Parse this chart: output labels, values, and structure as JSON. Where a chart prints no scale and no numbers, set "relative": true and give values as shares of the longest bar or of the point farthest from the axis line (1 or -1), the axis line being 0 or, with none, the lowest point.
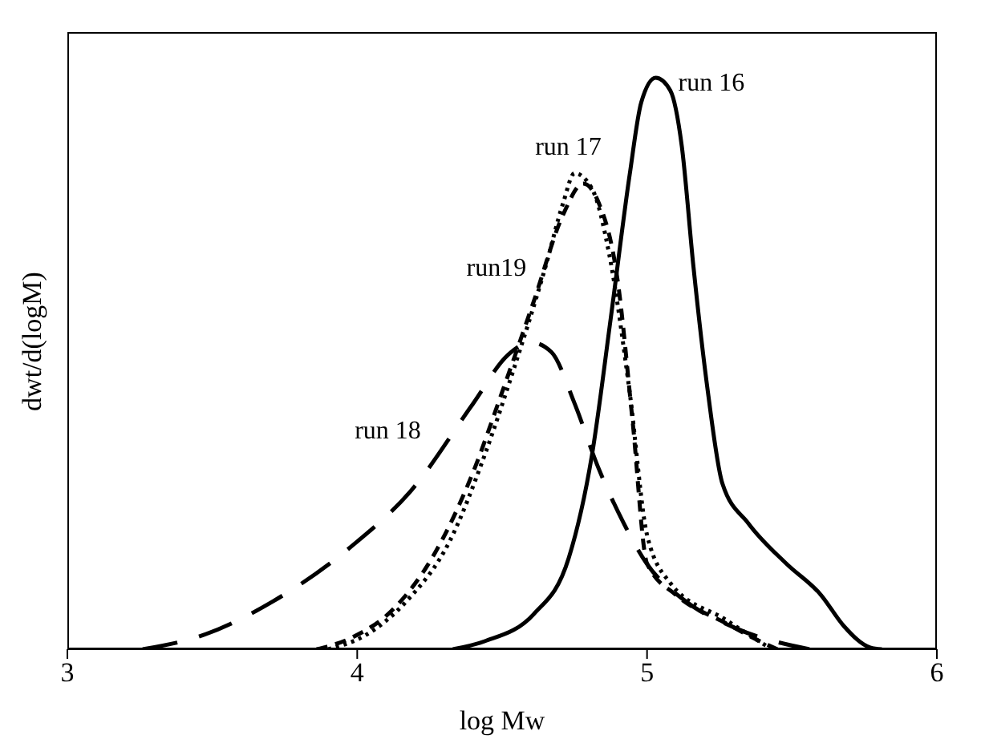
{
  "chart_data": {
    "type": "line",
    "xlabel": "log Mw",
    "ylabel": "dwt/d(logM)",
    "relative": true,
    "xlim": [
      3,
      6
    ],
    "xticks": [
      3,
      4,
      5,
      6
    ],
    "grid": false,
    "legend": false,
    "marker": "none",
    "series": [
      {
        "name": "run 16",
        "color": "#000000",
        "line_style": "solid",
        "x": [
          4.33,
          4.44,
          4.61,
          4.73,
          4.81,
          4.875,
          4.94,
          4.98,
          5.03,
          5.08,
          5.12,
          5.16,
          5.21,
          5.26,
          5.35,
          5.48,
          5.6,
          5.68,
          5.77,
          5.81
        ],
        "values": [
          0,
          0.014,
          0.062,
          0.16,
          0.34,
          0.58,
          0.83,
          0.957,
          1,
          0.978,
          0.88,
          0.67,
          0.45,
          0.29,
          0.22,
          0.15,
          0.095,
          0.04,
          0.003,
          0
        ]
      },
      {
        "name": "run 17",
        "color": "#000000",
        "line_style": "dashed",
        "x": [
          3.86,
          3.98,
          4.13,
          4.27,
          4.4,
          4.5,
          4.61,
          4.71,
          4.78,
          4.83,
          4.9,
          4.95,
          5.0,
          5.1,
          5.27,
          5.41,
          5.45
        ],
        "values": [
          0,
          0.02,
          0.073,
          0.17,
          0.31,
          0.45,
          0.61,
          0.76,
          0.815,
          0.785,
          0.64,
          0.4,
          0.15,
          0.095,
          0.046,
          0.009,
          0
        ]
      },
      {
        "name": "run 18",
        "color": "#000000",
        "line_style": "dashed",
        "x": [
          3.26,
          3.47,
          3.71,
          3.98,
          4.19,
          4.4,
          4.52,
          4.6,
          4.67,
          4.75,
          4.83,
          4.92,
          5.0,
          5.12,
          5.31,
          5.56
        ],
        "values": [
          0,
          0.025,
          0.084,
          0.18,
          0.28,
          0.43,
          0.515,
          0.537,
          0.52,
          0.43,
          0.32,
          0.22,
          0.149,
          0.089,
          0.036,
          0
        ]
      },
      {
        "name": "run19",
        "color": "#000000",
        "line_style": "dotted",
        "x": [
          3.9,
          4.03,
          4.17,
          4.32,
          4.44,
          4.54,
          4.65,
          4.71,
          4.75,
          4.81,
          4.87,
          4.94,
          5.0,
          5.08,
          5.27,
          5.43
        ],
        "values": [
          0,
          0.025,
          0.084,
          0.19,
          0.34,
          0.49,
          0.67,
          0.78,
          0.833,
          0.806,
          0.69,
          0.45,
          0.2,
          0.116,
          0.052,
          0
        ]
      }
    ]
  }
}
